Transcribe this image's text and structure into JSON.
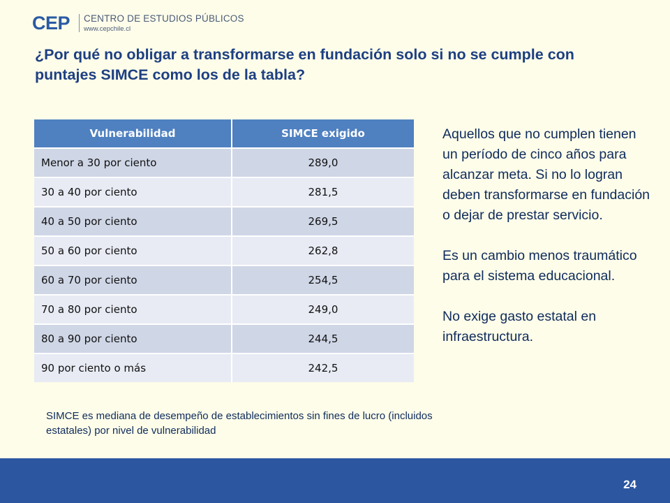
{
  "header": {
    "logo_mark": "CEP",
    "org_name": "CENTRO DE ESTUDIOS PÚBLICOS",
    "org_url": "www.cepchile.cl"
  },
  "title": "¿Por qué no obligar a transformarse en fundación solo si no se cumple con puntajes SIMCE como los de la tabla?",
  "table": {
    "headers": [
      "Vulnerabilidad",
      "SIMCE exigido"
    ],
    "rows": [
      [
        "Menor a 30 por ciento",
        "289,0"
      ],
      [
        "30 a 40 por ciento",
        "281,5"
      ],
      [
        "40 a 50 por ciento",
        "269,5"
      ],
      [
        "50 a 60 por ciento",
        "262,8"
      ],
      [
        "60 a 70 por ciento",
        "254,5"
      ],
      [
        "70 a 80 por ciento",
        "249,0"
      ],
      [
        "80 a 90 por ciento",
        "244,5"
      ],
      [
        "90 por ciento o más",
        "242,5"
      ]
    ]
  },
  "side_text": [
    "Aquellos que no cumplen tienen un período de cinco años para alcanzar meta. Si no lo logran deben transformarse en fundación o dejar de prestar servicio.",
    "Es un cambio menos traumático para el sistema educacional.",
    "No exige gasto estatal en infraestructura."
  ],
  "note": "SIMCE es mediana de desempeño de establecimientos sin fines de lucro (incluidos estatales) por nivel de vulnerabilidad",
  "footer": {
    "page_number": "24"
  },
  "colors": {
    "header_blue": "#4f80c0",
    "row_dark": "#cfd6e6",
    "row_light": "#e8ebf4",
    "footer_blue": "#2c56a0",
    "background": "#fdfde9"
  }
}
